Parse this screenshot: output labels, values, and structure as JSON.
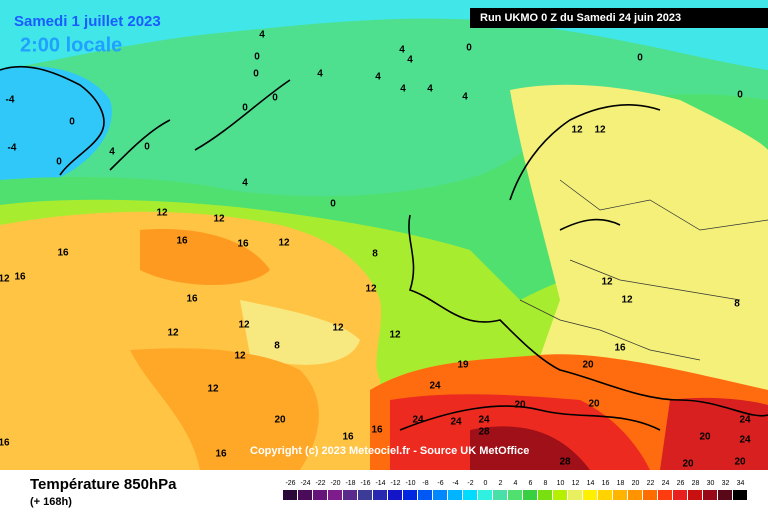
{
  "header": {
    "date": "Samedi 1 juillet 2023",
    "time": "2:00 locale",
    "run": "Run UKMO 0 Z du Samedi 24 juin 2023"
  },
  "copyright": "Copyright (c) 2023 Meteociel.fr - Source UK MetOffice",
  "footer": {
    "title": "Température 850hPa",
    "range": "(+ 168h)"
  },
  "contour_labels": [
    4,
    0,
    0,
    0,
    0,
    4,
    4,
    4,
    4,
    4,
    4,
    4,
    0,
    0,
    0,
    0,
    0,
    -4,
    -4,
    4,
    0,
    4,
    0,
    12,
    12,
    16,
    16,
    12,
    16,
    16,
    12,
    8,
    12,
    16,
    12,
    12,
    12,
    12,
    8,
    12,
    12,
    12,
    12,
    12,
    12,
    8,
    16,
    20,
    24,
    19,
    24,
    24,
    24,
    28,
    20,
    20,
    20,
    16,
    16,
    16,
    16,
    28,
    20,
    24,
    24,
    20,
    20
  ],
  "legend": {
    "scale": [
      -26,
      -24,
      -22,
      -20,
      -18,
      -16,
      -14,
      -12,
      -10,
      -8,
      -6,
      -4,
      -2,
      0,
      2,
      4,
      6,
      8,
      10,
      12,
      14,
      16,
      18,
      20,
      22,
      24,
      26,
      28,
      30,
      32,
      34
    ],
    "colors": [
      "#2a0838",
      "#4a0c58",
      "#66147a",
      "#7e1c8c",
      "#5a2a8c",
      "#3c3c96",
      "#2828b0",
      "#1414c8",
      "#0028e0",
      "#0058f4",
      "#0088ff",
      "#00b4ff",
      "#00dcff",
      "#30f0e0",
      "#48e0a8",
      "#50e070",
      "#38d040",
      "#78e010",
      "#b4f000",
      "#e8f060",
      "#fff000",
      "#ffd200",
      "#ffb400",
      "#ff9400",
      "#ff6c00",
      "#ff3c10",
      "#e82020",
      "#c81010",
      "#980818",
      "#580818",
      "#000000"
    ]
  }
}
